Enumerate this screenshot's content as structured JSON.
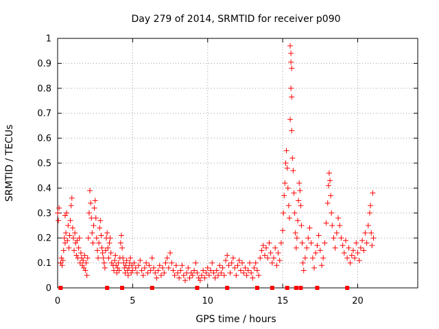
{
  "chart_data": {
    "type": "scatter",
    "title": "Day 279 of 2014, SRMTID for receiver p090",
    "xlabel": "GPS time / hours",
    "ylabel": "SRMTID / TECUs",
    "xlim": [
      0,
      24
    ],
    "ylim": [
      0,
      1
    ],
    "grid": true,
    "x_ticks": [
      0,
      5,
      10,
      15,
      20
    ],
    "y_ticks": [
      0,
      0.1,
      0.2,
      0.3,
      0.4,
      0.5,
      0.6,
      0.7,
      0.8,
      0.9,
      1
    ],
    "x_tick_labels": [
      "0",
      "5",
      "10",
      "15",
      "20"
    ],
    "y_tick_labels": [
      "0",
      "0.1",
      "0.2",
      "0.3",
      "0.4",
      "0.5",
      "0.6",
      "0.7",
      "0.8",
      "0.9",
      "1"
    ],
    "colors": {
      "points": "#ff0000",
      "markers": "#ff0000",
      "grid": "#9a9a9a"
    },
    "series": [
      {
        "name": "SRMTID",
        "marker": "plus",
        "points": [
          [
            0.0,
            0.3
          ],
          [
            0.05,
            0.27
          ],
          [
            0.1,
            0.32
          ],
          [
            0.2,
            0.1
          ],
          [
            0.25,
            0.12
          ],
          [
            0.3,
            0.09
          ],
          [
            0.35,
            0.11
          ],
          [
            0.4,
            0.15
          ],
          [
            0.45,
            0.2
          ],
          [
            0.5,
            0.18
          ],
          [
            0.5,
            0.29
          ],
          [
            0.55,
            0.22
          ],
          [
            0.6,
            0.3
          ],
          [
            0.65,
            0.19
          ],
          [
            0.7,
            0.25
          ],
          [
            0.75,
            0.16
          ],
          [
            0.8,
            0.21
          ],
          [
            0.85,
            0.27
          ],
          [
            0.9,
            0.33
          ],
          [
            0.95,
            0.36
          ],
          [
            1.0,
            0.24
          ],
          [
            1.05,
            0.2
          ],
          [
            1.1,
            0.15
          ],
          [
            1.15,
            0.22
          ],
          [
            1.2,
            0.18
          ],
          [
            1.25,
            0.13
          ],
          [
            1.3,
            0.19
          ],
          [
            1.35,
            0.12
          ],
          [
            1.4,
            0.16
          ],
          [
            1.45,
            0.2
          ],
          [
            1.5,
            0.1
          ],
          [
            1.55,
            0.14
          ],
          [
            1.6,
            0.12
          ],
          [
            1.65,
            0.09
          ],
          [
            1.7,
            0.11
          ],
          [
            1.75,
            0.08
          ],
          [
            1.8,
            0.13
          ],
          [
            1.85,
            0.07
          ],
          [
            1.9,
            0.1
          ],
          [
            1.95,
            0.05
          ],
          [
            2.0,
            0.12
          ],
          [
            2.05,
            0.2
          ],
          [
            2.1,
            0.3
          ],
          [
            2.15,
            0.39
          ],
          [
            2.2,
            0.34
          ],
          [
            2.25,
            0.28
          ],
          [
            2.3,
            0.22
          ],
          [
            2.35,
            0.18
          ],
          [
            2.4,
            0.25
          ],
          [
            2.45,
            0.32
          ],
          [
            2.5,
            0.35
          ],
          [
            2.55,
            0.28
          ],
          [
            2.6,
            0.2
          ],
          [
            2.65,
            0.15
          ],
          [
            2.7,
            0.12
          ],
          [
            2.75,
            0.18
          ],
          [
            2.8,
            0.24
          ],
          [
            2.85,
            0.27
          ],
          [
            2.9,
            0.21
          ],
          [
            2.95,
            0.16
          ],
          [
            3.0,
            0.14
          ],
          [
            3.05,
            0.12
          ],
          [
            3.1,
            0.1
          ],
          [
            3.15,
            0.08
          ],
          [
            3.2,
            0.15
          ],
          [
            3.25,
            0.2
          ],
          [
            3.3,
            0.22
          ],
          [
            3.35,
            0.16
          ],
          [
            3.4,
            0.12
          ],
          [
            3.45,
            0.18
          ],
          [
            3.5,
            0.2
          ],
          [
            3.55,
            0.14
          ],
          [
            3.6,
            0.1
          ],
          [
            3.7,
            0.09
          ],
          [
            3.75,
            0.07
          ],
          [
            3.8,
            0.11
          ],
          [
            3.85,
            0.13
          ],
          [
            3.9,
            0.09
          ],
          [
            3.95,
            0.06
          ],
          [
            4.0,
            0.08
          ],
          [
            4.05,
            0.1
          ],
          [
            4.1,
            0.07
          ],
          [
            4.15,
            0.12
          ],
          [
            4.2,
            0.18
          ],
          [
            4.25,
            0.21
          ],
          [
            4.3,
            0.16
          ],
          [
            4.35,
            0.12
          ],
          [
            4.4,
            0.1
          ],
          [
            4.45,
            0.08
          ],
          [
            4.5,
            0.06
          ],
          [
            4.55,
            0.09
          ],
          [
            4.6,
            0.11
          ],
          [
            4.65,
            0.07
          ],
          [
            4.7,
            0.05
          ],
          [
            4.75,
            0.08
          ],
          [
            4.8,
            0.1
          ],
          [
            4.85,
            0.12
          ],
          [
            4.9,
            0.06
          ],
          [
            4.95,
            0.09
          ],
          [
            5.0,
            0.07
          ],
          [
            5.1,
            0.1
          ],
          [
            5.2,
            0.08
          ],
          [
            5.3,
            0.06
          ],
          [
            5.4,
            0.09
          ],
          [
            5.5,
            0.11
          ],
          [
            5.6,
            0.07
          ],
          [
            5.7,
            0.05
          ],
          [
            5.8,
            0.08
          ],
          [
            5.9,
            0.1
          ],
          [
            6.0,
            0.06
          ],
          [
            6.1,
            0.09
          ],
          [
            6.2,
            0.07
          ],
          [
            6.3,
            0.12
          ],
          [
            6.4,
            0.08
          ],
          [
            6.5,
            0.06
          ],
          [
            6.6,
            0.04
          ],
          [
            6.7,
            0.07
          ],
          [
            6.8,
            0.09
          ],
          [
            6.9,
            0.05
          ],
          [
            7.0,
            0.08
          ],
          [
            7.1,
            0.06
          ],
          [
            7.2,
            0.1
          ],
          [
            7.3,
            0.12
          ],
          [
            7.4,
            0.08
          ],
          [
            7.5,
            0.14
          ],
          [
            7.6,
            0.1
          ],
          [
            7.7,
            0.07
          ],
          [
            7.8,
            0.05
          ],
          [
            7.9,
            0.09
          ],
          [
            8.0,
            0.06
          ],
          [
            8.1,
            0.04
          ],
          [
            8.2,
            0.07
          ],
          [
            8.3,
            0.09
          ],
          [
            8.4,
            0.05
          ],
          [
            8.5,
            0.03
          ],
          [
            8.6,
            0.06
          ],
          [
            8.7,
            0.08
          ],
          [
            8.8,
            0.04
          ],
          [
            8.9,
            0.06
          ],
          [
            9.0,
            0.05
          ],
          [
            9.1,
            0.07
          ],
          [
            9.2,
            0.1
          ],
          [
            9.3,
            0.06
          ],
          [
            9.4,
            0.04
          ],
          [
            9.5,
            0.03
          ],
          [
            9.6,
            0.05
          ],
          [
            9.7,
            0.07
          ],
          [
            9.8,
            0.04
          ],
          [
            9.9,
            0.06
          ],
          [
            10.0,
            0.08
          ],
          [
            10.1,
            0.05
          ],
          [
            10.2,
            0.07
          ],
          [
            10.3,
            0.1
          ],
          [
            10.4,
            0.06
          ],
          [
            10.5,
            0.04
          ],
          [
            10.6,
            0.07
          ],
          [
            10.7,
            0.05
          ],
          [
            10.8,
            0.09
          ],
          [
            10.9,
            0.06
          ],
          [
            11.0,
            0.08
          ],
          [
            11.1,
            0.05
          ],
          [
            11.2,
            0.11
          ],
          [
            11.3,
            0.13
          ],
          [
            11.4,
            0.09
          ],
          [
            11.5,
            0.06
          ],
          [
            11.6,
            0.1
          ],
          [
            11.7,
            0.12
          ],
          [
            11.8,
            0.08
          ],
          [
            11.9,
            0.05
          ],
          [
            12.0,
            0.09
          ],
          [
            12.1,
            0.11
          ],
          [
            12.2,
            0.07
          ],
          [
            12.3,
            0.1
          ],
          [
            12.4,
            0.06
          ],
          [
            12.5,
            0.08
          ],
          [
            12.6,
            0.05
          ],
          [
            12.7,
            0.07
          ],
          [
            12.8,
            0.1
          ],
          [
            12.9,
            0.06
          ],
          [
            13.0,
            0.04
          ],
          [
            13.1,
            0.08
          ],
          [
            13.2,
            0.1
          ],
          [
            13.3,
            0.07
          ],
          [
            13.4,
            0.05
          ],
          [
            13.5,
            0.12
          ],
          [
            13.6,
            0.15
          ],
          [
            13.7,
            0.17
          ],
          [
            13.8,
            0.13
          ],
          [
            13.9,
            0.16
          ],
          [
            14.0,
            0.12
          ],
          [
            14.1,
            0.18
          ],
          [
            14.2,
            0.14
          ],
          [
            14.3,
            0.1
          ],
          [
            14.4,
            0.12
          ],
          [
            14.5,
            0.16
          ],
          [
            14.6,
            0.09
          ],
          [
            14.7,
            0.14
          ],
          [
            14.8,
            0.11
          ],
          [
            14.9,
            0.18
          ],
          [
            15.0,
            0.23
          ],
          [
            15.05,
            0.3
          ],
          [
            15.1,
            0.37
          ],
          [
            15.15,
            0.42
          ],
          [
            15.2,
            0.5
          ],
          [
            15.25,
            0.55
          ],
          [
            15.3,
            0.48
          ],
          [
            15.35,
            0.4
          ],
          [
            15.4,
            0.33
          ],
          [
            15.45,
            0.28
          ],
          [
            15.5,
            0.97
          ],
          [
            15.55,
            0.94
          ],
          [
            15.55,
            0.905
          ],
          [
            15.6,
            0.88
          ],
          [
            15.55,
            0.8
          ],
          [
            15.6,
            0.765
          ],
          [
            15.5,
            0.675
          ],
          [
            15.6,
            0.63
          ],
          [
            15.65,
            0.52
          ],
          [
            15.7,
            0.47
          ],
          [
            15.75,
            0.38
          ],
          [
            15.8,
            0.3
          ],
          [
            15.85,
            0.22
          ],
          [
            15.9,
            0.16
          ],
          [
            15.95,
            0.2
          ],
          [
            16.0,
            0.27
          ],
          [
            16.05,
            0.35
          ],
          [
            16.1,
            0.42
          ],
          [
            16.15,
            0.39
          ],
          [
            16.2,
            0.33
          ],
          [
            16.25,
            0.25
          ],
          [
            16.3,
            0.18
          ],
          [
            16.35,
            0.1
          ],
          [
            16.4,
            0.07
          ],
          [
            16.5,
            0.12
          ],
          [
            16.6,
            0.16
          ],
          [
            16.7,
            0.2
          ],
          [
            16.8,
            0.24
          ],
          [
            16.9,
            0.18
          ],
          [
            17.0,
            0.12
          ],
          [
            17.1,
            0.08
          ],
          [
            17.2,
            0.14
          ],
          [
            17.3,
            0.17
          ],
          [
            17.4,
            0.21
          ],
          [
            17.5,
            0.15
          ],
          [
            17.6,
            0.09
          ],
          [
            17.7,
            0.12
          ],
          [
            17.8,
            0.18
          ],
          [
            17.9,
            0.26
          ],
          [
            18.0,
            0.34
          ],
          [
            18.05,
            0.41
          ],
          [
            18.1,
            0.46
          ],
          [
            18.15,
            0.43
          ],
          [
            18.2,
            0.37
          ],
          [
            18.25,
            0.3
          ],
          [
            18.3,
            0.25
          ],
          [
            18.4,
            0.2
          ],
          [
            18.5,
            0.16
          ],
          [
            18.6,
            0.22
          ],
          [
            18.7,
            0.28
          ],
          [
            18.8,
            0.25
          ],
          [
            18.9,
            0.2
          ],
          [
            19.0,
            0.17
          ],
          [
            19.1,
            0.14
          ],
          [
            19.2,
            0.19
          ],
          [
            19.3,
            0.12
          ],
          [
            19.4,
            0.16
          ],
          [
            19.5,
            0.1
          ],
          [
            19.6,
            0.13
          ],
          [
            19.7,
            0.15
          ],
          [
            19.8,
            0.12
          ],
          [
            19.9,
            0.18
          ],
          [
            20.0,
            0.14
          ],
          [
            20.1,
            0.11
          ],
          [
            20.2,
            0.16
          ],
          [
            20.3,
            0.19
          ],
          [
            20.4,
            0.15
          ],
          [
            20.5,
            0.22
          ],
          [
            20.6,
            0.18
          ],
          [
            20.7,
            0.25
          ],
          [
            20.8,
            0.3
          ],
          [
            20.85,
            0.33
          ],
          [
            20.9,
            0.22
          ],
          [
            20.95,
            0.17
          ],
          [
            21.0,
            0.38
          ],
          [
            21.05,
            0.2
          ]
        ]
      }
    ],
    "baseline_markers_x": [
      0.2,
      3.3,
      4.3,
      6.3,
      9.3,
      11.3,
      13.3,
      14.3,
      15.3,
      15.9,
      16.2,
      17.3,
      19.3
    ]
  }
}
